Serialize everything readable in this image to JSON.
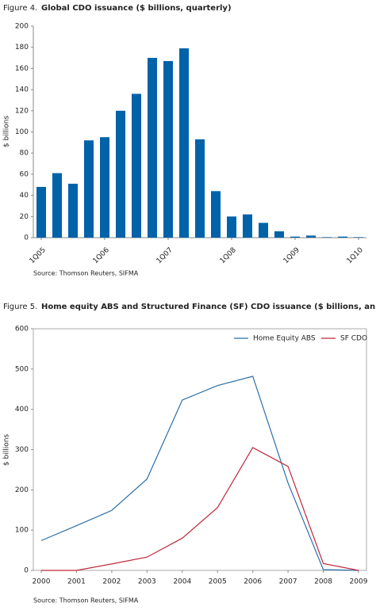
{
  "chart_data": [
    {
      "type": "bar",
      "title_prefix": "Figure 4.",
      "title": "Global CDO issuance ($ billions, quarterly)",
      "y_label": "$ billions",
      "source": "Source: Thomson Reuters, SIFMA",
      "categories": [
        "1Q05",
        null,
        null,
        null,
        "1Q06",
        null,
        null,
        null,
        "1Q07",
        null,
        null,
        null,
        "1Q08",
        null,
        null,
        null,
        "1Q09",
        null,
        null,
        null,
        "1Q10"
      ],
      "values": [
        48,
        61,
        51,
        92,
        95,
        120,
        136,
        170,
        167,
        179,
        93,
        44,
        20,
        22,
        14,
        6,
        1,
        2,
        0.5,
        1,
        0.5
      ],
      "color": "#0062a8",
      "ylim": [
        0,
        200
      ],
      "yticks": [
        0,
        20,
        40,
        60,
        80,
        100,
        120,
        140,
        160,
        180,
        200
      ]
    },
    {
      "type": "line",
      "title_prefix": "Figure 5.",
      "title": "Home equity ABS and Structured Finance (SF) CDO issuance ($ billions, annual)",
      "y_label": "$ billions",
      "source": "Source: Thomson Reuters, SIFMA",
      "categories": [
        "2000",
        "2001",
        "2002",
        "2003",
        "2004",
        "2005",
        "2006",
        "2007",
        "2008",
        "2009"
      ],
      "series": [
        {
          "name": "Home Equity ABS",
          "color": "#2c6fa8",
          "values": [
            74,
            111,
            149,
            227,
            423,
            459,
            482,
            217,
            2,
            0
          ]
        },
        {
          "name": "SF CDO",
          "color": "#c0283c",
          "values": [
            0,
            0,
            16,
            33,
            80,
            156,
            305,
            258,
            17,
            0
          ]
        }
      ],
      "ylim": [
        0,
        600
      ],
      "yticks": [
        0,
        100,
        200,
        300,
        400,
        500,
        600
      ],
      "legend": "upper right"
    }
  ]
}
